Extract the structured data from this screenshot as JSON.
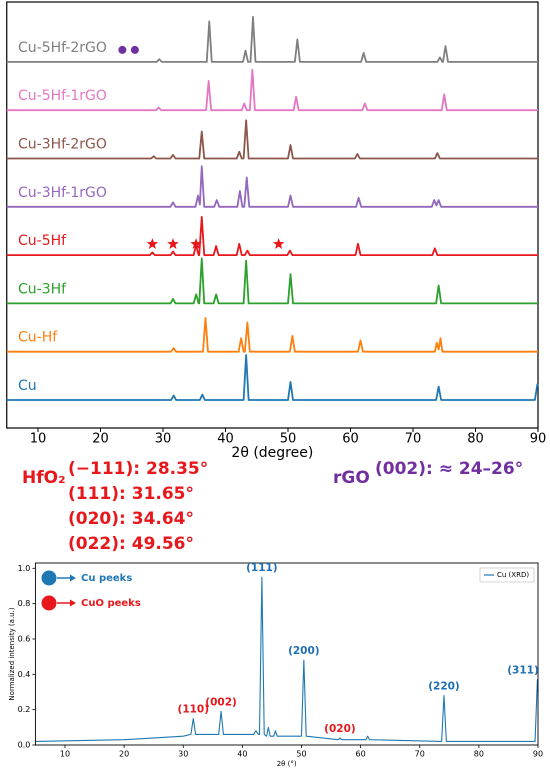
{
  "chart_data": [
    {
      "type": "line",
      "xlabel": "2θ (degree)",
      "xlim": [
        5,
        90
      ],
      "xticks": [
        10,
        20,
        30,
        40,
        50,
        60,
        70,
        80,
        90
      ],
      "series": [
        {
          "name": "Cu",
          "color": "#1f77b4",
          "x": [
            5,
            31.3,
            31.7,
            32.1,
            35.9,
            36.3,
            36.7,
            42.9,
            43.3,
            43.7,
            50.0,
            50.4,
            50.8,
            73.7,
            74.1,
            74.5,
            89.5,
            89.9,
            90
          ],
          "values": [
            0,
            0,
            0.1,
            0,
            0,
            0.12,
            0,
            0,
            1.0,
            0,
            0,
            0.4,
            0,
            0,
            0.3,
            0,
            0,
            0.35,
            0.3
          ]
        },
        {
          "name": "Cu-Hf",
          "color": "#ff7f0e",
          "x": [
            5,
            31.3,
            31.7,
            32.1,
            36.4,
            36.8,
            37.2,
            42.1,
            42.5,
            42.9,
            43.1,
            43.5,
            43.9,
            50.3,
            50.7,
            51.1,
            61.2,
            61.6,
            62.0,
            73.5,
            73.8,
            74.1,
            74.4,
            74.7,
            90
          ],
          "values": [
            0,
            0,
            0.08,
            0,
            0,
            0.75,
            0,
            0,
            0.3,
            0,
            0,
            0.65,
            0,
            0,
            0.35,
            0,
            0,
            0.25,
            0,
            0,
            0.2,
            0.05,
            0.3,
            0,
            0
          ]
        },
        {
          "name": "Cu-3Hf",
          "color": "#2ca02c",
          "x": [
            5,
            31.2,
            31.6,
            32.0,
            34.9,
            35.3,
            35.7,
            35.8,
            36.2,
            36.6,
            38.1,
            38.5,
            38.9,
            42.9,
            43.3,
            43.7,
            50.0,
            50.4,
            50.8,
            73.7,
            74.1,
            74.5,
            90
          ],
          "values": [
            0,
            0,
            0.1,
            0,
            0,
            0.2,
            0,
            0,
            1.0,
            0,
            0,
            0.2,
            0,
            0,
            0.95,
            0,
            0,
            0.65,
            0,
            0,
            0.4,
            0,
            0
          ]
        },
        {
          "name": "Cu-5Hf",
          "color": "#e8171c",
          "x": [
            5,
            27.9,
            28.3,
            28.7,
            31.2,
            31.6,
            32.0,
            34.9,
            35.3,
            35.7,
            35.8,
            36.2,
            36.6,
            38.1,
            38.5,
            38.9,
            41.8,
            42.2,
            42.6,
            43.1,
            43.5,
            43.9,
            49.9,
            50.3,
            50.7,
            60.8,
            61.2,
            61.6,
            73.1,
            73.5,
            73.9,
            90
          ],
          "values": [
            0,
            0,
            0.06,
            0,
            0,
            0.08,
            0,
            0,
            0.22,
            0,
            0,
            0.85,
            0,
            0,
            0.2,
            0,
            0,
            0.25,
            0,
            0,
            0.1,
            0,
            0,
            0.1,
            0,
            0,
            0.25,
            0,
            0,
            0.15,
            0,
            0
          ],
          "markers": {
            "shape": "star",
            "color": "#e8171c",
            "x": [
              28.3,
              31.6,
              35.3,
              48.5
            ]
          }
        },
        {
          "name": "Cu-3Hf-1rGO",
          "color": "#9467bd",
          "x": [
            5,
            31.2,
            31.6,
            32.0,
            35.2,
            35.6,
            35.9,
            36.2,
            36.6,
            38.2,
            38.6,
            39.0,
            41.9,
            42.3,
            42.7,
            43.0,
            43.4,
            43.8,
            50.0,
            50.4,
            50.8,
            60.9,
            61.3,
            61.7,
            73.0,
            73.4,
            73.75,
            74.1,
            74.5,
            90
          ],
          "values": [
            0,
            0,
            0.1,
            0,
            0,
            0.25,
            0.05,
            0.9,
            0,
            0,
            0.15,
            0,
            0,
            0.35,
            0,
            0,
            0.65,
            0,
            0,
            0.25,
            0,
            0,
            0.2,
            0,
            0,
            0.15,
            0.03,
            0.15,
            0,
            0
          ]
        },
        {
          "name": "Cu-3Hf-2rGO",
          "color": "#8c564b",
          "x": [
            5,
            28.1,
            28.5,
            28.9,
            31.2,
            31.6,
            32.0,
            35.8,
            36.2,
            36.6,
            41.8,
            42.2,
            42.6,
            42.9,
            43.3,
            43.7,
            50.0,
            50.4,
            50.8,
            60.7,
            61.1,
            61.5,
            73.5,
            73.9,
            74.3,
            90
          ],
          "values": [
            0,
            0,
            0.05,
            0,
            0,
            0.08,
            0,
            0,
            0.6,
            0,
            0,
            0.15,
            0,
            0,
            0.85,
            0,
            0,
            0.3,
            0,
            0,
            0.1,
            0,
            0,
            0.12,
            0,
            0
          ]
        },
        {
          "name": "Cu-5Hf-1rGO",
          "color": "#e377c2",
          "x": [
            5,
            28.9,
            29.3,
            29.7,
            36.9,
            37.3,
            37.7,
            42.6,
            43.0,
            43.4,
            43.9,
            44.3,
            44.7,
            50.9,
            51.3,
            51.7,
            61.9,
            62.3,
            62.7,
            74.6,
            75.0,
            75.4,
            90
          ],
          "values": [
            0,
            0,
            0.06,
            0,
            0,
            0.65,
            0,
            0,
            0.15,
            0,
            0,
            0.9,
            0,
            0,
            0.3,
            0,
            0,
            0.15,
            0,
            0,
            0.35,
            0,
            0
          ]
        },
        {
          "name": "Cu-5Hf-2rGO",
          "color": "#7f7f7f",
          "x": [
            5,
            29.0,
            29.4,
            29.8,
            37.0,
            37.4,
            37.8,
            42.8,
            43.2,
            43.6,
            44.0,
            44.4,
            44.8,
            51.1,
            51.5,
            51.9,
            61.7,
            62.1,
            62.5,
            73.9,
            74.3,
            74.7,
            74.8,
            75.2,
            75.6,
            90
          ],
          "values": [
            0,
            0,
            0.06,
            0,
            0,
            0.9,
            0,
            0,
            0.25,
            0,
            0,
            1.0,
            0,
            0,
            0.5,
            0,
            0,
            0.2,
            0,
            0,
            0.1,
            0,
            0,
            0.35,
            0,
            0
          ],
          "markers": {
            "shape": "circle",
            "color": "#7030a0",
            "x": [
              23.5,
              25.5
            ]
          }
        }
      ],
      "annotations": {
        "hfo2": {
          "name": "HfO₂",
          "color": "#e8171c",
          "lines": [
            "(−111): 28.35°",
            "(111): 31.65°",
            "(020): 34.64°",
            "(022): 49.56°"
          ]
        },
        "rgo": {
          "name": "rGO",
          "color": "#7030a0",
          "lines": [
            "(002): ≈ 24–26°"
          ]
        }
      }
    },
    {
      "type": "line",
      "xlabel": "2θ (°)",
      "ylabel": "Normalized intensity (a.u.)",
      "xlim": [
        5,
        90
      ],
      "xticks": [
        10,
        20,
        30,
        40,
        50,
        60,
        70,
        80,
        90
      ],
      "ylim": [
        0,
        1.03
      ],
      "yticks": [
        {
          "value": 0,
          "label": "0.0"
        },
        {
          "value": 0.2,
          "label": "0.2"
        },
        {
          "value": 0.4,
          "label": "0.4"
        },
        {
          "value": 0.6,
          "label": "0.6"
        },
        {
          "value": 0.8,
          "label": "0.8"
        },
        {
          "value": 1,
          "label": "1.0"
        }
      ],
      "legend": "upper right",
      "series": [
        {
          "name": "Cu (XRD)",
          "color": "#1f77b4",
          "x": [
            5,
            20,
            30,
            31.3,
            31.7,
            32.1,
            36.0,
            36.4,
            36.8,
            41.9,
            42.3,
            42.7,
            42.9,
            43.3,
            43.7,
            44.1,
            44.4,
            44.7,
            45.3,
            45.6,
            45.9,
            50.0,
            50.4,
            50.8,
            56.2,
            56.5,
            56.8,
            60.9,
            61.2,
            61.5,
            73.7,
            74.1,
            74.5,
            89.5,
            89.9,
            90
          ],
          "values": [
            0.02,
            0.03,
            0.05,
            0.06,
            0.15,
            0.06,
            0.06,
            0.19,
            0.06,
            0.06,
            0.08,
            0.06,
            0.06,
            0.95,
            0.06,
            0.05,
            0.1,
            0.05,
            0.05,
            0.08,
            0.05,
            0.05,
            0.48,
            0.05,
            0.03,
            0.04,
            0.03,
            0.03,
            0.05,
            0.03,
            0.02,
            0.28,
            0.02,
            0.02,
            0.37,
            0.3
          ]
        }
      ],
      "peak_labels": [
        {
          "text": "(110)",
          "x": 31.7,
          "color": "#e8171c"
        },
        {
          "text": "(002)",
          "x": 36.4,
          "color": "#e8171c"
        },
        {
          "text": "(111)",
          "x": 43.3,
          "color": "#1f6fb4"
        },
        {
          "text": "(200)",
          "x": 50.4,
          "color": "#1f6fb4"
        },
        {
          "text": "(020)",
          "x": 56.5,
          "color": "#e8171c"
        },
        {
          "text": "(220)",
          "x": 74.1,
          "color": "#1f6fb4"
        },
        {
          "text": "(311)",
          "x": 89.9,
          "color": "#1f6fb4"
        }
      ],
      "marker_key": [
        {
          "label": "Cu peeks",
          "color": "#1f77b4"
        },
        {
          "label": "CuO peeks",
          "color": "#e8171c"
        }
      ]
    }
  ]
}
